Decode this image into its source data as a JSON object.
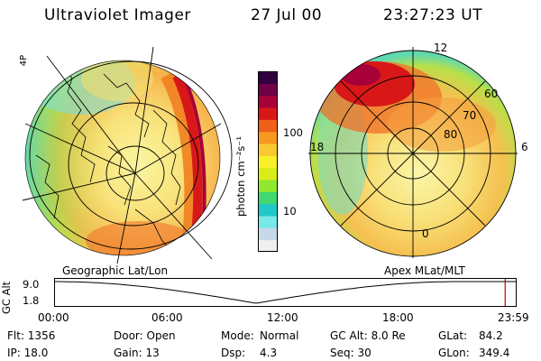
{
  "header": {
    "title": "Ultraviolet Imager",
    "date": "27 Jul 00",
    "time": "23:27:23 UT"
  },
  "left_panel": {
    "caption": "Geographic Lat/Lon",
    "corner_text": "4P"
  },
  "right_panel": {
    "caption": "Apex MLat/MLT",
    "mlt_labels": {
      "top": "12",
      "left": "18",
      "right": "6",
      "bottom": "0"
    },
    "lat_labels": [
      "60",
      "70",
      "80"
    ]
  },
  "colorbar": {
    "unit_label": "photon cm⁻²s⁻¹",
    "ticks": [
      {
        "label": "100",
        "value": 100
      },
      {
        "label": "10",
        "value": 10
      }
    ],
    "colors": [
      "#f0f0f0",
      "#c8d8e8",
      "#78e8e8",
      "#20c8c8",
      "#40d870",
      "#90e830",
      "#d8ec18",
      "#f8f028",
      "#f8c830",
      "#f89820",
      "#f06018",
      "#d81818",
      "#a80038",
      "#700048",
      "#300040"
    ]
  },
  "timeline": {
    "ylabel": "GC Alt",
    "yticks": [
      "9.0",
      "1.8"
    ],
    "xticks": [
      "00:00",
      "06:00",
      "12:00",
      "18:00",
      "23:59"
    ],
    "current_marker_time": "23:27",
    "marker_color": "#cc0000"
  },
  "info": {
    "col1": [
      "Flt: 1356",
      "IP: 18.0"
    ],
    "col2": [
      "Door: Open",
      "Gain: 13"
    ],
    "col3_keys": [
      "Mode:",
      "Dsp:"
    ],
    "col3_vals": [
      "Normal",
      "4.3"
    ],
    "col4": [
      "GC Alt: 8.0 Re",
      "Seq: 30"
    ],
    "col5_keys": [
      "GLat:",
      "GLon:"
    ],
    "col5_vals": [
      "84.2",
      "349.4"
    ]
  }
}
